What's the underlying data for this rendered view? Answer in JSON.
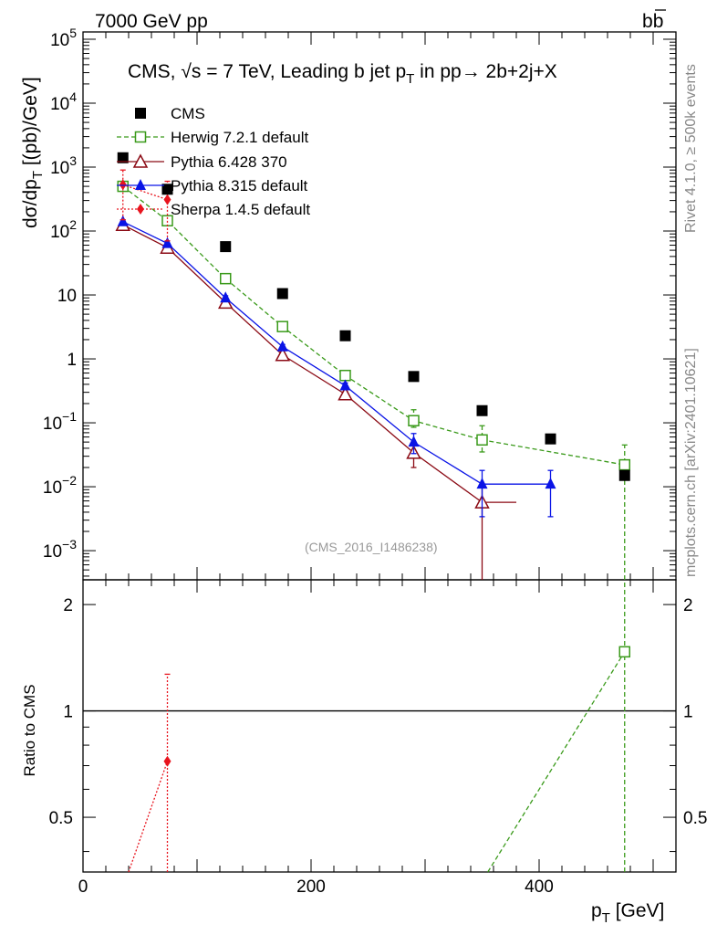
{
  "header": {
    "left_label": "7000 GeV pp",
    "right_label": "b̅b",
    "right_label_b": "b",
    "right_label_bbar": "b"
  },
  "side_labels": {
    "rivet": "Rivet 4.1.0, ≥ 500k events",
    "mcplots": "mcplots.cern.ch [arXiv:2401.10621]"
  },
  "chart_data": [
    {
      "type": "scatter",
      "panel": "main",
      "title": "CMS, √s = 7 TeV, Leading b jet p_T in pp→ 2b+2j+X",
      "title_parts": {
        "pre": "CMS, ",
        "sqrt": "√",
        "s": "s",
        "mid": " = 7 TeV, Leading b jet p",
        "sub": "T",
        "post": " in pp→  2b+2j+X"
      },
      "ylabel": "dσ/dp_T [(pb)/GeV]",
      "ylabel_parts": {
        "main": "dσ/dp",
        "sub": "T",
        "units": " [(pb)/GeV]"
      },
      "yscale": "log",
      "ylim": [
        0.00035,
        130000
      ],
      "xlim": [
        0,
        520
      ],
      "watermark": "(CMS_2016_I1486238)",
      "y_tick_labels": [
        {
          "value": 100000,
          "base": "10",
          "exp": "5"
        },
        {
          "value": 10000,
          "base": "10",
          "exp": "4"
        },
        {
          "value": 1000,
          "base": "10",
          "exp": "3"
        },
        {
          "value": 100,
          "base": "10",
          "exp": "2"
        },
        {
          "value": 10,
          "base": "10",
          "exp": ""
        },
        {
          "value": 1,
          "base": "1",
          "exp": ""
        },
        {
          "value": 0.1,
          "base": "10",
          "exp": "−1"
        },
        {
          "value": 0.01,
          "base": "10",
          "exp": "−2"
        },
        {
          "value": 0.001,
          "base": "10",
          "exp": "−3"
        }
      ],
      "series": [
        {
          "name": "CMS",
          "label": "CMS",
          "color": "#000000",
          "marker": "square-filled",
          "line": "none",
          "x": [
            35,
            74,
            125,
            175,
            230,
            290,
            350,
            410,
            475
          ],
          "y": [
            1400,
            450,
            57,
            10.5,
            2.3,
            0.53,
            0.155,
            0.056,
            0.015
          ],
          "yerr_lo": [
            null,
            null,
            null,
            null,
            null,
            null,
            null,
            null,
            null
          ],
          "yerr_hi": [
            null,
            null,
            null,
            null,
            null,
            null,
            null,
            null,
            null
          ]
        },
        {
          "name": "Herwig 7.2.1 default",
          "label": "Herwig 7.2.1 default",
          "color": "#3a9a1a",
          "marker": "square-open",
          "line": "dashed",
          "x": [
            35,
            74,
            125,
            175,
            230,
            290,
            350,
            475
          ],
          "y": [
            500,
            145,
            18,
            3.2,
            0.55,
            0.108,
            0.054,
            0.022
          ],
          "yerr_lo": [
            450,
            130,
            16,
            2.9,
            0.49,
            0.085,
            0.035,
            0.0001
          ],
          "yerr_hi": [
            560,
            160,
            20,
            3.5,
            0.62,
            0.16,
            0.09,
            0.045
          ]
        },
        {
          "name": "Pythia 6.428 370",
          "label": "Pythia 6.428 370",
          "color": "#8b0a14",
          "marker": "triangle-open",
          "line": "solid",
          "x": [
            35,
            74,
            125,
            175,
            230,
            290,
            350,
            380
          ],
          "y": [
            125,
            55,
            7.6,
            1.15,
            0.28,
            0.034,
            0.0057,
            0.0057
          ],
          "yerr_lo": [
            115,
            50,
            7.0,
            1.05,
            0.25,
            0.02,
            0.0001,
            null
          ],
          "yerr_hi": [
            135,
            60,
            8.2,
            1.25,
            0.31,
            0.048,
            0.011,
            null
          ]
        },
        {
          "name": "Pythia 8.315 default",
          "label": "Pythia 8.315 default",
          "color": "#0a14e6",
          "marker": "triangle-filled",
          "line": "solid",
          "x": [
            35,
            74,
            125,
            175,
            230,
            290,
            350,
            410
          ],
          "y": [
            140,
            64,
            9.0,
            1.55,
            0.38,
            0.05,
            0.011,
            0.011
          ],
          "yerr_lo": [
            130,
            58,
            8.3,
            1.42,
            0.34,
            0.033,
            0.0034,
            0.0034
          ],
          "yerr_hi": [
            150,
            70,
            9.7,
            1.68,
            0.42,
            0.068,
            0.018,
            0.018
          ]
        },
        {
          "name": "Sherpa 1.4.5 default",
          "label": "Sherpa 1.4.5 default",
          "color": "#e8141e",
          "marker": "diamond-filled",
          "line": "dotted",
          "x": [
            35,
            74
          ],
          "y": [
            530,
            310
          ],
          "yerr_lo": [
            150,
            70
          ],
          "yerr_hi": [
            900,
            600
          ]
        }
      ]
    },
    {
      "type": "line",
      "panel": "ratio",
      "ylabel": "Ratio to CMS",
      "xlabel": "p_T [GeV]",
      "xlabel_parts": {
        "main": "p",
        "sub": "T",
        "units": " [GeV]"
      },
      "xlim": [
        0,
        520
      ],
      "ylim": [
        0.35,
        2.35
      ],
      "yscale": "log",
      "x_tick_labels": [
        0,
        200,
        400
      ],
      "y_tick_labels": [
        "0.5",
        "1",
        "2"
      ],
      "y_tick_values": [
        0.5,
        1,
        2
      ],
      "reference_line": 1,
      "series": [
        {
          "name": "Herwig 7.2.1 default",
          "color": "#3a9a1a",
          "marker": "square-open",
          "line": "dashed",
          "x": [
            355,
            475
          ],
          "y": [
            0.35,
            1.47
          ],
          "marker_x": [
            475
          ],
          "marker_y": [
            1.47
          ],
          "err_x": 475,
          "err_lo": 0.35,
          "err_hi": 2.35
        },
        {
          "name": "Sherpa 1.4.5 default",
          "color": "#e8141e",
          "marker": "diamond-filled",
          "line": "dotted",
          "x": [
            40,
            74
          ],
          "y": [
            0.35,
            0.72
          ],
          "marker_x": [
            74
          ],
          "marker_y": [
            0.72
          ],
          "err_x": 74,
          "err_lo": 0.35,
          "err_hi": 1.27
        }
      ]
    }
  ]
}
